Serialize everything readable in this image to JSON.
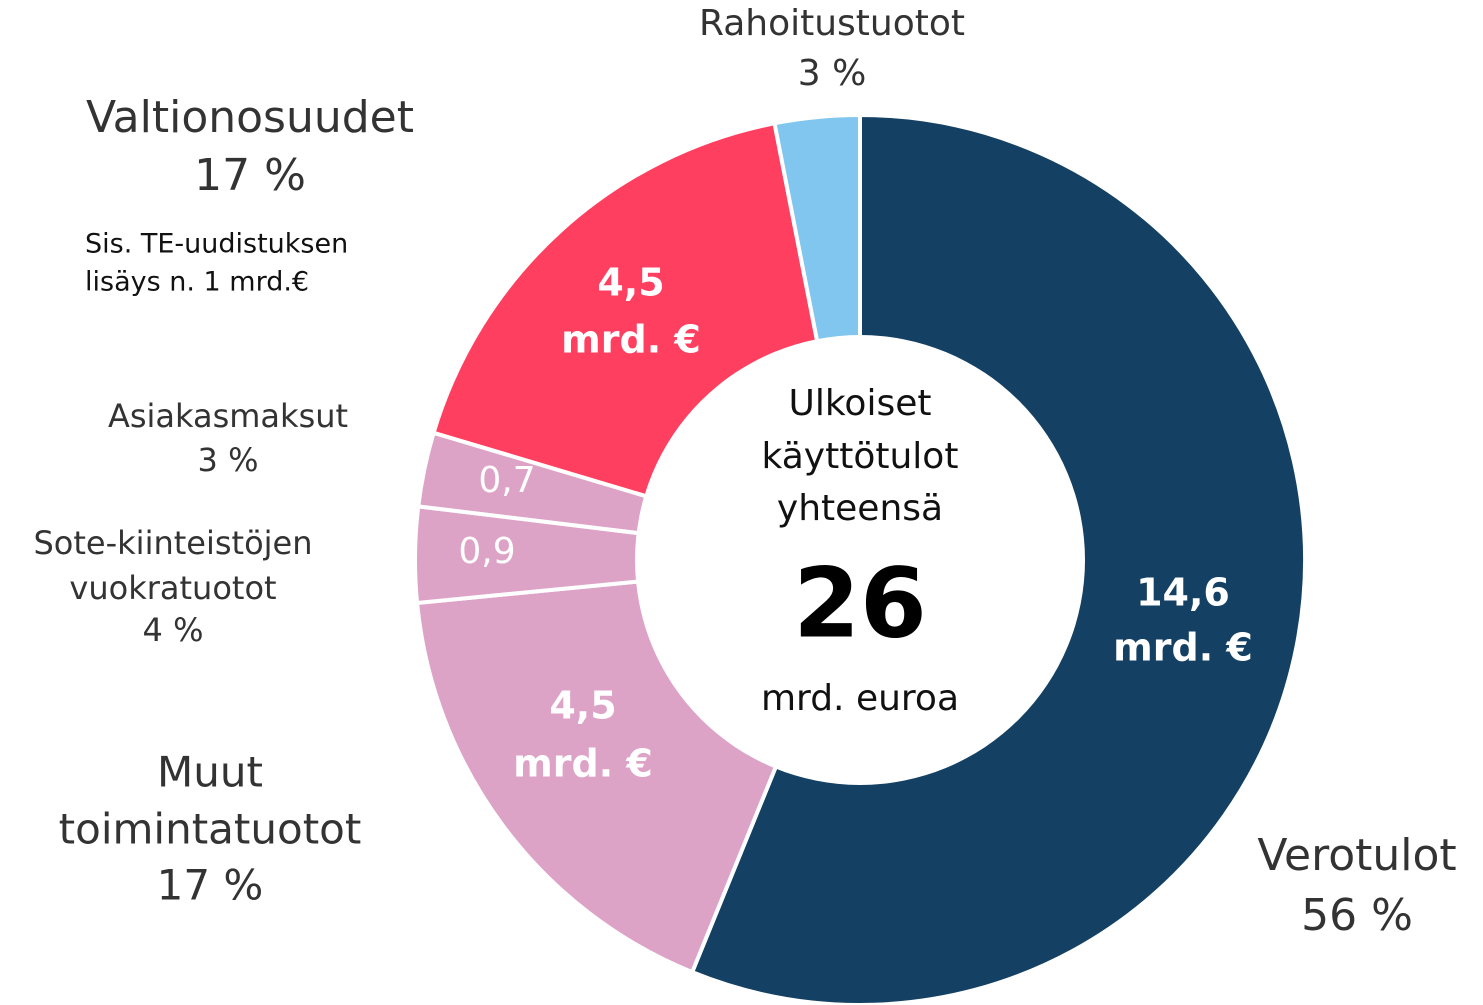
{
  "chart_data": {
    "type": "donut",
    "categories": [
      [
        "Verotulot"
      ],
      [
        "Muut",
        "toimintatuotot"
      ],
      [
        "Sote-kiinteistöjen",
        "vuokratuotot"
      ],
      [
        "Asiakasmaksut"
      ],
      [
        "Valtionosuudet"
      ],
      [
        "Rahoitustuotot"
      ]
    ],
    "values": [
      14.6,
      4.5,
      0.9,
      0.7,
      4.5,
      0.8
    ],
    "value_labels": [
      [
        "14,6",
        "mrd. €"
      ],
      [
        "4,5",
        "mrd. €"
      ],
      [
        "0,9"
      ],
      [
        "0,7"
      ],
      [
        "4,5",
        "mrd. €"
      ],
      null
    ],
    "percents": [
      56,
      17,
      4,
      3,
      17,
      3
    ],
    "percent_labels": [
      "56 %",
      "17 %",
      "4 %",
      "3 %",
      "17 %",
      "3 %"
    ],
    "colors": [
      "#144163",
      "#dda3c6",
      "#dda3c6",
      "#dda3c6",
      "#ff3f60",
      "#80c6ee"
    ],
    "center_label": [
      "Ulkoiset",
      "käyttötulot",
      "yhteensä"
    ],
    "total": 26,
    "total_unit": "mrd. euroa",
    "annotation": [
      "Sis. TE-uudistuksen",
      "lisäys n. 1 mrd.€"
    ]
  }
}
